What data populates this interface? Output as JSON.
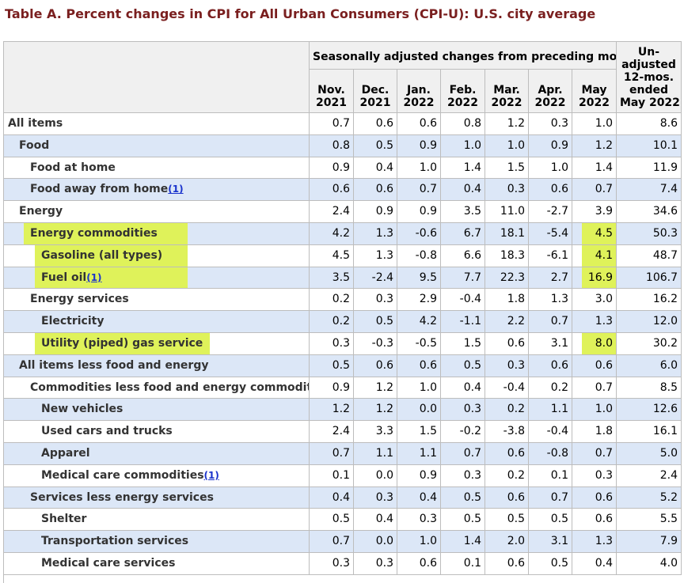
{
  "title": "Table A. Percent changes in CPI for All Urban Consumers (CPI-U): U.S. city average",
  "header": {
    "group": "Seasonally adjusted changes from preceding month",
    "unadjusted": [
      "Un-",
      "adjusted",
      "12-mos.",
      "ended",
      "May 2022"
    ],
    "months": [
      [
        "Nov.",
        "2021"
      ],
      [
        "Dec.",
        "2021"
      ],
      [
        "Jan.",
        "2022"
      ],
      [
        "Feb.",
        "2022"
      ],
      [
        "Mar.",
        "2022"
      ],
      [
        "Apr.",
        "2022"
      ],
      [
        "May",
        "2022"
      ]
    ]
  },
  "rows": [
    {
      "label": "All items",
      "fn": "",
      "values": [
        "0.7",
        "0.6",
        "0.6",
        "0.8",
        "1.2",
        "0.3",
        "1.0",
        "8.6"
      ]
    },
    {
      "label": "Food",
      "fn": "",
      "values": [
        "0.8",
        "0.5",
        "0.9",
        "1.0",
        "1.0",
        "0.9",
        "1.2",
        "10.1"
      ]
    },
    {
      "label": "Food at home",
      "fn": "",
      "values": [
        "0.9",
        "0.4",
        "1.0",
        "1.4",
        "1.5",
        "1.0",
        "1.4",
        "11.9"
      ]
    },
    {
      "label": "Food away from home",
      "fn": "(1)",
      "values": [
        "0.6",
        "0.6",
        "0.7",
        "0.4",
        "0.3",
        "0.6",
        "0.7",
        "7.4"
      ]
    },
    {
      "label": "Energy",
      "fn": "",
      "values": [
        "2.4",
        "0.9",
        "0.9",
        "3.5",
        "11.0",
        "-2.7",
        "3.9",
        "34.6"
      ]
    },
    {
      "label": "Energy commodities",
      "fn": "",
      "values": [
        "4.2",
        "1.3",
        "-0.6",
        "6.7",
        "18.1",
        "-5.4",
        "4.5",
        "50.3"
      ]
    },
    {
      "label": "Gasoline (all types)",
      "fn": "",
      "values": [
        "4.5",
        "1.3",
        "-0.8",
        "6.6",
        "18.3",
        "-6.1",
        "4.1",
        "48.7"
      ]
    },
    {
      "label": "Fuel oil",
      "fn": "(1)",
      "values": [
        "3.5",
        "-2.4",
        "9.5",
        "7.7",
        "22.3",
        "2.7",
        "16.9",
        "106.7"
      ]
    },
    {
      "label": "Energy services",
      "fn": "",
      "values": [
        "0.2",
        "0.3",
        "2.9",
        "-0.4",
        "1.8",
        "1.3",
        "3.0",
        "16.2"
      ]
    },
    {
      "label": "Electricity",
      "fn": "",
      "values": [
        "0.2",
        "0.5",
        "4.2",
        "-1.1",
        "2.2",
        "0.7",
        "1.3",
        "12.0"
      ]
    },
    {
      "label": "Utility (piped) gas service",
      "fn": "",
      "values": [
        "0.3",
        "-0.3",
        "-0.5",
        "1.5",
        "0.6",
        "3.1",
        "8.0",
        "30.2"
      ]
    },
    {
      "label": "All items less food and energy",
      "fn": "",
      "values": [
        "0.5",
        "0.6",
        "0.6",
        "0.5",
        "0.3",
        "0.6",
        "0.6",
        "6.0"
      ]
    },
    {
      "label": "Commodities less food and energy commodities",
      "fn": "",
      "values": [
        "0.9",
        "1.2",
        "1.0",
        "0.4",
        "-0.4",
        "0.2",
        "0.7",
        "8.5"
      ]
    },
    {
      "label": "New vehicles",
      "fn": "",
      "values": [
        "1.2",
        "1.2",
        "0.0",
        "0.3",
        "0.2",
        "1.1",
        "1.0",
        "12.6"
      ]
    },
    {
      "label": "Used cars and trucks",
      "fn": "",
      "values": [
        "2.4",
        "3.3",
        "1.5",
        "-0.2",
        "-3.8",
        "-0.4",
        "1.8",
        "16.1"
      ]
    },
    {
      "label": "Apparel",
      "fn": "",
      "values": [
        "0.7",
        "1.1",
        "1.1",
        "0.7",
        "0.6",
        "-0.8",
        "0.7",
        "5.0"
      ]
    },
    {
      "label": "Medical care commodities",
      "fn": "(1)",
      "values": [
        "0.1",
        "0.0",
        "0.9",
        "0.3",
        "0.2",
        "0.1",
        "0.3",
        "2.4"
      ]
    },
    {
      "label": "Services less energy services",
      "fn": "",
      "values": [
        "0.4",
        "0.3",
        "0.4",
        "0.5",
        "0.6",
        "0.7",
        "0.6",
        "5.2"
      ]
    },
    {
      "label": "Shelter",
      "fn": "",
      "values": [
        "0.5",
        "0.4",
        "0.3",
        "0.5",
        "0.5",
        "0.5",
        "0.6",
        "5.5"
      ]
    },
    {
      "label": "Transportation services",
      "fn": "",
      "values": [
        "0.7",
        "0.0",
        "1.0",
        "1.4",
        "2.0",
        "3.1",
        "1.3",
        "7.9"
      ]
    },
    {
      "label": "Medical care services",
      "fn": "",
      "values": [
        "0.3",
        "0.3",
        "0.6",
        "0.1",
        "0.6",
        "0.5",
        "0.4",
        "4.0"
      ]
    }
  ],
  "highlight_color": "#dff25a"
}
